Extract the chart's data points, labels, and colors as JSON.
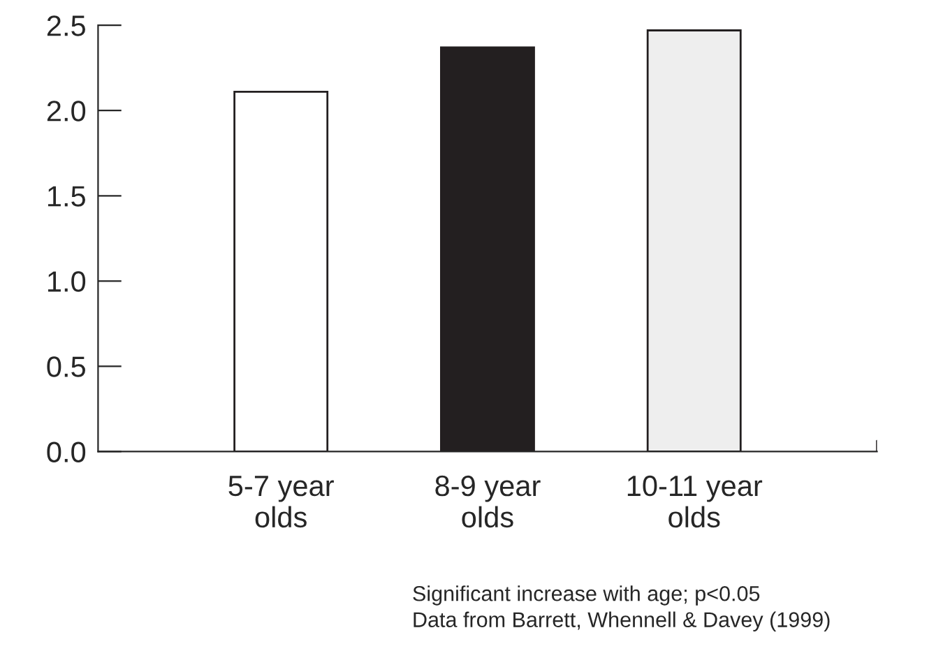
{
  "chart_data": {
    "type": "bar",
    "categories": [
      "5-7 year\nolds",
      "8-9 year\nolds",
      "10-11 year\nolds"
    ],
    "values": [
      2.11,
      2.37,
      2.47
    ],
    "colors": [
      "#ffffff",
      "#231f20",
      "#eeeeee"
    ],
    "ylim": [
      0,
      2.5
    ],
    "yticks": [
      {
        "value": 0,
        "label": "0.0"
      },
      {
        "value": 0.5,
        "label": "0.5"
      },
      {
        "value": 1.0,
        "label": "1.0"
      },
      {
        "value": 1.5,
        "label": "1.5"
      },
      {
        "value": 2.0,
        "label": "2.0"
      },
      {
        "value": 2.5,
        "label": "2.5"
      }
    ],
    "grid": false,
    "annotations": [
      "Significant increase with age; p<0.05\nData from Barrett, Whennell & Davey (1999)"
    ]
  }
}
